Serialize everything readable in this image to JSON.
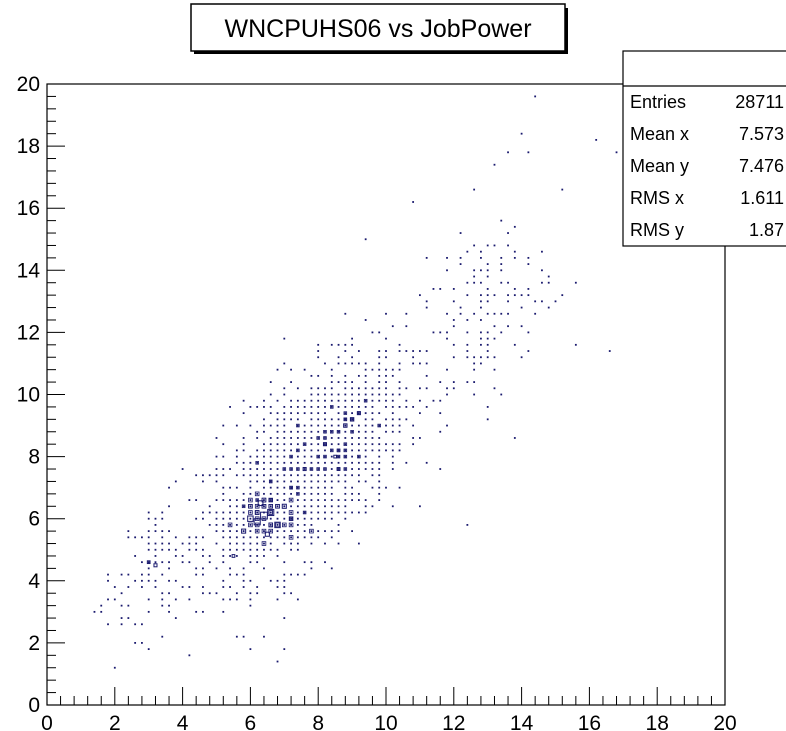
{
  "chart_data": {
    "type": "scatter",
    "title": "WNCPUHS06 vs JobPower",
    "xlabel": "",
    "ylabel": "",
    "xlim": [
      0,
      20
    ],
    "ylim": [
      0,
      20
    ],
    "x_ticks": [
      "0",
      "2",
      "4",
      "6",
      "8",
      "10",
      "12",
      "14",
      "16",
      "18",
      "20"
    ],
    "y_ticks": [
      "0",
      "2",
      "4",
      "6",
      "8",
      "10",
      "12",
      "14",
      "16",
      "18",
      "20"
    ],
    "grid": false,
    "marker_color": "#1a1a6e",
    "stats_box": {
      "placement": "top-right",
      "rows": [
        {
          "label": "Entries",
          "value": "28711"
        },
        {
          "label": "Mean x",
          "value": "7.573"
        },
        {
          "label": "Mean y",
          "value": "7.476"
        },
        {
          "label": "RMS x",
          "value": "1.611"
        },
        {
          "label": "RMS y",
          "value": "1.87"
        }
      ]
    },
    "dense_boxes": [
      {
        "x": 6.4,
        "y": 6.1,
        "w": 1
      },
      {
        "x": 6.2,
        "y": 5.9,
        "w": 0.9
      },
      {
        "x": 6.6,
        "y": 6.2,
        "w": 0.9
      },
      {
        "x": 6.0,
        "y": 6.0,
        "w": 0.8
      },
      {
        "x": 6.8,
        "y": 5.8,
        "w": 0.8
      },
      {
        "x": 6.3,
        "y": 6.5,
        "w": 0.7
      },
      {
        "x": 5.8,
        "y": 5.6,
        "w": 0.6
      },
      {
        "x": 7.0,
        "y": 6.4,
        "w": 0.6
      },
      {
        "x": 6.5,
        "y": 5.5,
        "w": 0.6
      },
      {
        "x": 9.0,
        "y": 9.2,
        "w": 0.5
      },
      {
        "x": 8.8,
        "y": 9.0,
        "w": 0.5
      },
      {
        "x": 9.2,
        "y": 9.4,
        "w": 0.45
      },
      {
        "x": 8.2,
        "y": 8.4,
        "w": 0.45
      },
      {
        "x": 7.6,
        "y": 7.6,
        "w": 0.45
      },
      {
        "x": 3.2,
        "y": 4.5,
        "w": 0.45
      },
      {
        "x": 3.0,
        "y": 4.6,
        "w": 0.4
      },
      {
        "x": 8.5,
        "y": 8.0,
        "w": 0.4
      },
      {
        "x": 5.5,
        "y": 4.8,
        "w": 0.4
      },
      {
        "x": 7.2,
        "y": 7.0,
        "w": 0.4
      }
    ],
    "scatter_clusters": [
      {
        "cx": 7.6,
        "cy": 7.6,
        "sx": 1.5,
        "sy": 1.75,
        "rho": 0.6,
        "n": 1700
      },
      {
        "cx": 6.4,
        "cy": 6.1,
        "sx": 0.6,
        "sy": 0.5,
        "rho": 0.3,
        "n": 260
      },
      {
        "cx": 3.2,
        "cy": 4.6,
        "sx": 0.3,
        "sy": 0.8,
        "rho": 0.2,
        "n": 60
      },
      {
        "cx": 12.8,
        "cy": 12.5,
        "sx": 1.0,
        "sy": 1.5,
        "rho": 0.4,
        "n": 150
      },
      {
        "cx": 2.1,
        "cy": 3.5,
        "sx": 0.4,
        "sy": 0.8,
        "rho": 0.2,
        "n": 20
      }
    ],
    "outlier_points": [
      {
        "x": 14.3,
        "y": 19.5
      },
      {
        "x": 13.9,
        "y": 18.3
      },
      {
        "x": 14.1,
        "y": 17.9
      },
      {
        "x": 16.1,
        "y": 18.1
      },
      {
        "x": 16.8,
        "y": 17.9
      },
      {
        "x": 15.2,
        "y": 16.7
      },
      {
        "x": 13.5,
        "y": 17.8
      },
      {
        "x": 13.1,
        "y": 17.3
      },
      {
        "x": 12.7,
        "y": 16.5
      },
      {
        "x": 9.3,
        "y": 14.9
      },
      {
        "x": 14.2,
        "y": 14.1
      },
      {
        "x": 14.8,
        "y": 13.7
      },
      {
        "x": 15.0,
        "y": 12.9
      },
      {
        "x": 15.7,
        "y": 11.7
      },
      {
        "x": 16.6,
        "y": 11.3
      },
      {
        "x": 13.8,
        "y": 8.7
      },
      {
        "x": 6.9,
        "y": 1.9
      },
      {
        "x": 6.4,
        "y": 2.3
      },
      {
        "x": 5.7,
        "y": 2.3
      },
      {
        "x": 1.9,
        "y": 2.5
      },
      {
        "x": 2.3,
        "y": 2.5
      },
      {
        "x": 2.6,
        "y": 2.6
      },
      {
        "x": 2.7,
        "y": 2.5
      },
      {
        "x": 2.1,
        "y": 3.1
      },
      {
        "x": 1.9,
        "y": 4.1
      },
      {
        "x": 2.3,
        "y": 4.3
      },
      {
        "x": 12.3,
        "y": 5.7
      },
      {
        "x": 13.6,
        "y": 15.1
      },
      {
        "x": 14.6,
        "y": 14.7
      }
    ]
  }
}
